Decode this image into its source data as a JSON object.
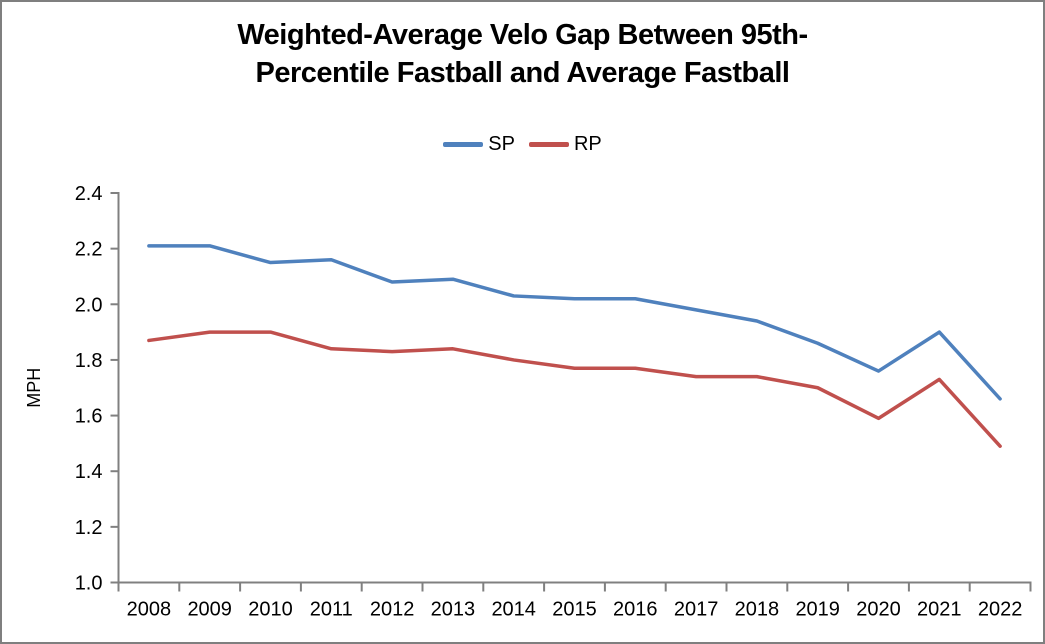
{
  "window": {
    "background": "#ffffff",
    "border_color": "#7f7f7f"
  },
  "chart_data": {
    "type": "line",
    "title": "Weighted-Average Velo Gap Between 95th-Percentile Fastball and Average Fastball",
    "title_lines": [
      "Weighted-Average Velo Gap Between 95th-",
      "Percentile Fastball and Average Fastball"
    ],
    "xlabel": "",
    "ylabel": "MPH",
    "ylim": [
      1.0,
      2.4
    ],
    "ytick_labels": [
      "1.0",
      "1.2",
      "1.4",
      "1.6",
      "1.8",
      "2.0",
      "2.2",
      "2.4"
    ],
    "categories": [
      "2008",
      "2009",
      "2010",
      "2011",
      "2012",
      "2013",
      "2014",
      "2015",
      "2016",
      "2017",
      "2018",
      "2019",
      "2020",
      "2021",
      "2022"
    ],
    "series": [
      {
        "name": "SP",
        "color": "#4F81BD",
        "values": [
          2.21,
          2.21,
          2.15,
          2.16,
          2.08,
          2.09,
          2.03,
          2.02,
          2.02,
          1.98,
          1.94,
          1.86,
          1.76,
          1.9,
          1.66
        ]
      },
      {
        "name": "RP",
        "color": "#C0504D",
        "values": [
          1.87,
          1.9,
          1.9,
          1.84,
          1.83,
          1.84,
          1.8,
          1.77,
          1.77,
          1.74,
          1.74,
          1.7,
          1.59,
          1.73,
          1.49
        ]
      }
    ],
    "grid": false,
    "legend_position": "top-center",
    "axis_color": "#808080",
    "text_color": "#000000"
  },
  "legend": {
    "items": [
      {
        "label": "SP"
      },
      {
        "label": "RP"
      }
    ]
  }
}
